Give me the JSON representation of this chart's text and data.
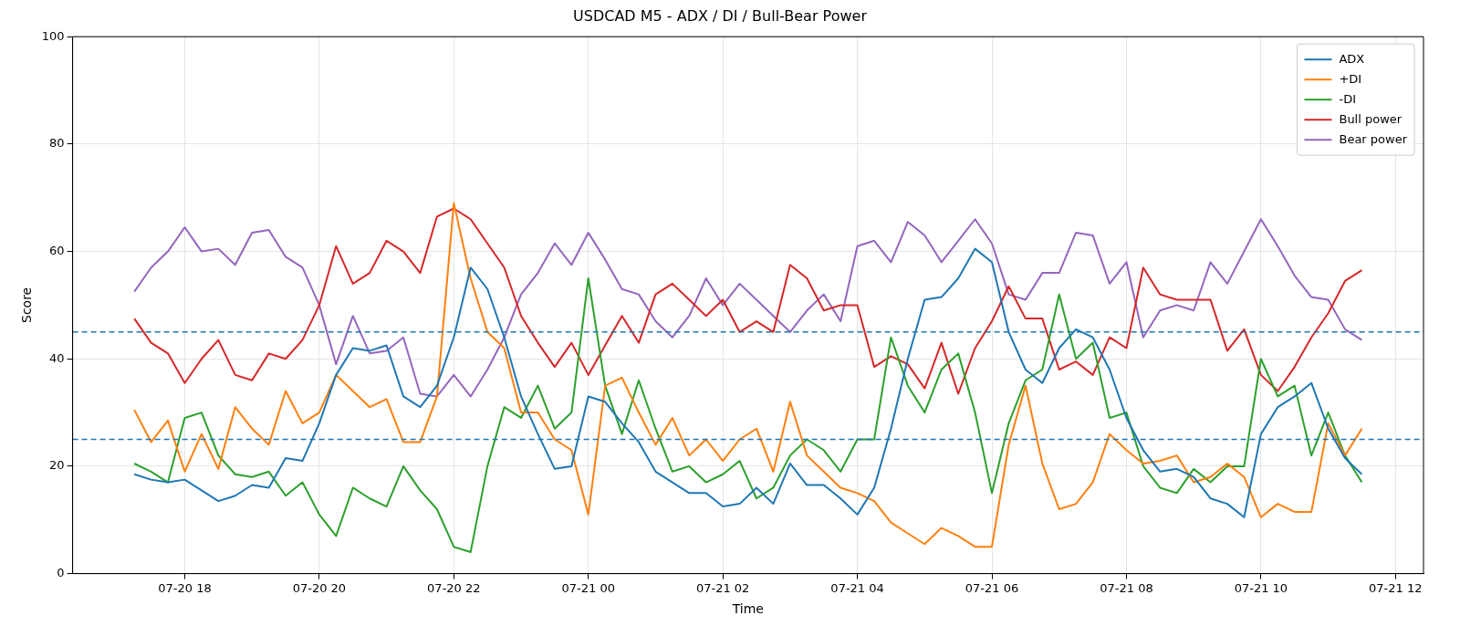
{
  "chart_data": {
    "type": "line",
    "title": "USDCAD M5 - ADX / DI / Bull-Bear Power",
    "xlabel": "Time",
    "ylabel": "Score",
    "x": [
      "--07-20T17:15",
      "--07-20T17:30",
      "--07-20T17:45",
      "--07-20T18:00",
      "--07-20T18:15",
      "--07-20T18:30",
      "--07-20T18:45",
      "--07-20T19:00",
      "--07-20T19:15",
      "--07-20T19:30",
      "--07-20T19:45",
      "--07-20T20:00",
      "--07-20T20:15",
      "--07-20T20:30",
      "--07-20T20:45",
      "--07-20T21:00",
      "--07-20T21:15",
      "--07-20T21:30",
      "--07-20T21:45",
      "--07-20T22:00",
      "--07-20T22:15",
      "--07-20T22:30",
      "--07-20T22:45",
      "--07-20T23:00",
      "--07-20T23:15",
      "--07-20T23:30",
      "--07-20T23:45",
      "--07-21T00:00",
      "--07-21T00:15",
      "--07-21T00:30",
      "--07-21T00:45",
      "--07-21T01:00",
      "--07-21T01:15",
      "--07-21T01:30",
      "--07-21T01:45",
      "--07-21T02:00",
      "--07-21T02:15",
      "--07-21T02:30",
      "--07-21T02:45",
      "--07-21T03:00",
      "--07-21T03:15",
      "--07-21T03:30",
      "--07-21T03:45",
      "--07-21T04:00",
      "--07-21T04:15",
      "--07-21T04:30",
      "--07-21T04:45",
      "--07-21T05:00",
      "--07-21T05:15",
      "--07-21T05:30",
      "--07-21T05:45",
      "--07-21T06:00",
      "--07-21T06:15",
      "--07-21T06:30",
      "--07-21T06:45",
      "--07-21T07:00",
      "--07-21T07:15",
      "--07-21T07:30",
      "--07-21T07:45",
      "--07-21T08:00",
      "--07-21T08:15",
      "--07-21T08:30",
      "--07-21T08:45",
      "--07-21T09:00",
      "--07-21T09:15",
      "--07-21T09:30",
      "--07-21T09:45",
      "--07-21T10:00",
      "--07-21T10:15",
      "--07-21T10:30",
      "--07-21T10:45",
      "--07-21T11:00",
      "--07-21T11:15",
      "--07-21T11:30"
    ],
    "series": [
      {
        "name": "ADX",
        "color": "#1f77b4",
        "values": [
          18.5,
          17.5,
          17,
          17.5,
          15.5,
          13.5,
          14.5,
          16.5,
          16,
          21.5,
          21,
          28,
          37,
          42,
          41.5,
          42.5,
          33,
          31,
          35,
          44,
          57,
          53,
          44,
          33,
          26,
          19.5,
          20,
          33,
          32,
          28,
          24.5,
          19,
          17,
          15,
          15,
          12.5,
          13,
          16,
          13,
          20.5,
          16.5,
          16.5,
          14,
          11,
          16,
          27,
          40,
          51,
          51.5,
          55,
          60.5,
          58,
          45,
          38,
          35.5,
          42,
          45.5,
          44,
          38,
          29,
          23,
          19,
          19.5,
          18,
          14,
          13,
          10.5,
          26,
          31,
          33,
          35.5,
          27,
          21.5,
          18.5
        ]
      },
      {
        "name": "+DI",
        "color": "#ff7f0e",
        "values": [
          30.5,
          24.5,
          28.5,
          19,
          26,
          19.5,
          31,
          27,
          24,
          34,
          28,
          30,
          37,
          34,
          31,
          32.5,
          24.5,
          24.5,
          33,
          69,
          55,
          45,
          42,
          30,
          30,
          25,
          23,
          11,
          35,
          36.5,
          30,
          24,
          29,
          22,
          25,
          21,
          25,
          27,
          19,
          32,
          22,
          19,
          16,
          15,
          13.5,
          9.5,
          7.5,
          5.5,
          8.5,
          7,
          5,
          5,
          24,
          35,
          20.5,
          12,
          13,
          17,
          26,
          23,
          20.5,
          21,
          22,
          17,
          18,
          20.5,
          18,
          10.5,
          13,
          11.5,
          11.5,
          28,
          22,
          27
        ]
      },
      {
        "name": "-DI",
        "color": "#2ca02c",
        "values": [
          20.5,
          19,
          17,
          29,
          30,
          22,
          18.5,
          18,
          19,
          14.5,
          17,
          11,
          7,
          16,
          14,
          12.5,
          20,
          15.5,
          12,
          5,
          4,
          20,
          31,
          29,
          35,
          27,
          30,
          55,
          35,
          26,
          36,
          27,
          19,
          20,
          17,
          18.5,
          21,
          14,
          16,
          22,
          25,
          23,
          19,
          25,
          25,
          44,
          35,
          30,
          38,
          41,
          30,
          15,
          28,
          36,
          38,
          52,
          40,
          43,
          29,
          30,
          20,
          16,
          15,
          19.5,
          17,
          20,
          20,
          40,
          33,
          35,
          22,
          30,
          22,
          17
        ]
      },
      {
        "name": "Bull power",
        "color": "#d62728",
        "values": [
          47.5,
          43,
          41,
          35.5,
          40,
          43.5,
          37,
          36,
          41,
          40,
          43.5,
          50,
          61,
          54,
          56,
          62,
          60,
          56,
          66.5,
          68,
          66,
          61.5,
          57,
          48,
          43,
          38.5,
          43,
          37,
          42.5,
          48,
          43,
          52,
          54,
          51,
          48,
          51,
          45,
          47,
          45,
          57.5,
          55,
          49,
          50,
          50,
          38.5,
          40.5,
          39,
          34.5,
          43,
          33.5,
          42,
          47,
          53.5,
          47.5,
          47.5,
          38,
          39.5,
          37,
          44,
          42,
          57,
          52,
          51,
          51,
          51,
          41.5,
          45.5,
          37,
          34,
          38.5,
          44,
          48.5,
          54.5,
          56.5
        ]
      },
      {
        "name": "Bear power",
        "color": "#9467bd",
        "values": [
          52.5,
          57,
          60,
          64.5,
          60,
          60.5,
          57.5,
          63.5,
          64,
          59,
          57,
          50,
          39,
          48,
          41,
          41.5,
          44,
          33.5,
          33,
          37,
          33,
          38,
          44,
          52,
          56,
          61.5,
          57.5,
          63.5,
          58.5,
          53,
          52,
          47,
          44,
          48,
          55,
          50,
          54,
          51,
          48,
          45,
          49,
          52,
          47,
          61,
          62,
          58,
          65.5,
          63,
          58,
          62,
          66,
          61.5,
          52,
          51,
          56,
          56,
          63.5,
          63,
          54,
          58,
          44,
          49,
          50,
          49,
          58,
          54,
          60,
          66,
          61,
          55.5,
          51.5,
          51,
          45.5,
          43.5
        ]
      }
    ],
    "xlim": [
      "--07-20T16:20",
      "--07-21T12:25"
    ],
    "xticks": [
      {
        "value": "--07-20T18:00",
        "label": "07-20 18"
      },
      {
        "value": "--07-20T20:00",
        "label": "07-20 20"
      },
      {
        "value": "--07-20T22:00",
        "label": "07-20 22"
      },
      {
        "value": "--07-21T00:00",
        "label": "07-21 00"
      },
      {
        "value": "--07-21T02:00",
        "label": "07-21 02"
      },
      {
        "value": "--07-21T04:00",
        "label": "07-21 04"
      },
      {
        "value": "--07-21T06:00",
        "label": "07-21 06"
      },
      {
        "value": "--07-21T08:00",
        "label": "07-21 08"
      },
      {
        "value": "--07-21T10:00",
        "label": "07-21 10"
      },
      {
        "value": "--07-21T12:00",
        "label": "07-21 12"
      }
    ],
    "ylim": [
      0,
      100
    ],
    "yticks": [
      0,
      20,
      40,
      60,
      80,
      100
    ],
    "ref_lines": [
      {
        "axis": "y",
        "value": 45,
        "color": "#1f77b4",
        "line_style": "dashed"
      },
      {
        "axis": "y",
        "value": 25,
        "color": "#1f77b4",
        "line_style": "dashed"
      }
    ],
    "grid": true,
    "legend": "top right",
    "marker": "none",
    "line_style": "solid"
  }
}
